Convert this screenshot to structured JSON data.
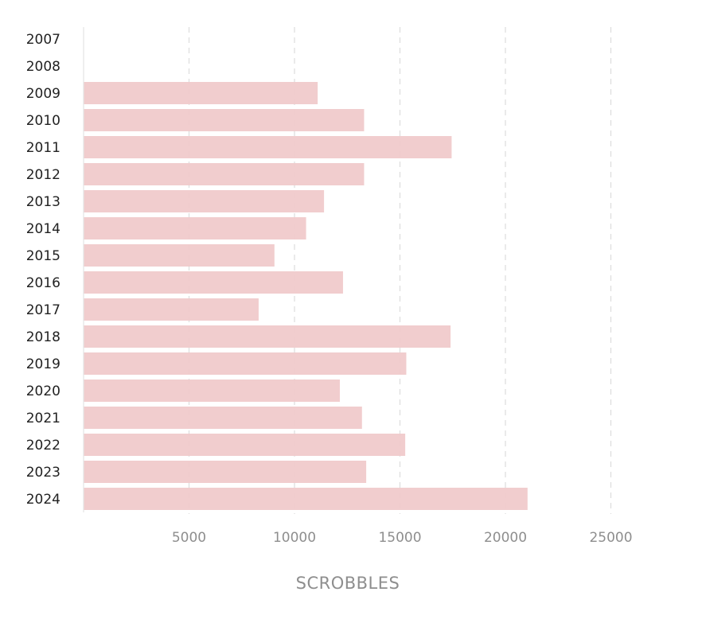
{
  "chart_data": {
    "type": "bar",
    "orientation": "horizontal",
    "categories": [
      "2007",
      "2008",
      "2009",
      "2010",
      "2011",
      "2012",
      "2013",
      "2014",
      "2015",
      "2016",
      "2017",
      "2018",
      "2019",
      "2020",
      "2021",
      "2022",
      "2023",
      "2024"
    ],
    "values": [
      0,
      0,
      11100,
      13300,
      17450,
      13300,
      11400,
      10550,
      9050,
      12300,
      8300,
      17400,
      15300,
      12150,
      13200,
      15250,
      13400,
      21050
    ],
    "xlabel": "SCROBBLES",
    "ylabel": "",
    "xlim": [
      0,
      25500
    ],
    "xticks": [
      5000,
      10000,
      15000,
      20000,
      25000
    ],
    "grid": true,
    "legend": "none",
    "colors": {
      "bar": "#f0c9ca",
      "grid": "#dcdcdc"
    }
  }
}
